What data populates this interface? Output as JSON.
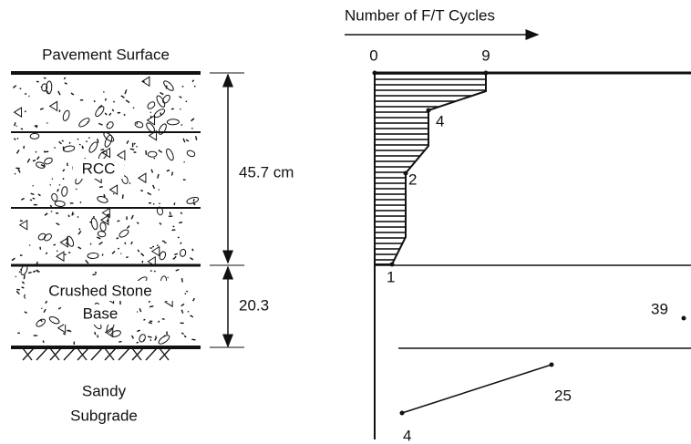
{
  "pavement": {
    "surface_label": "Pavement Surface",
    "rcc_label": "RCC",
    "base_label": [
      "Crushed Stone",
      "Base"
    ],
    "subgrade_label": [
      "Sandy",
      "Subgrade"
    ]
  },
  "dimensions": {
    "rcc_thickness": "45.7 cm",
    "base_thickness": "20.3"
  },
  "cycles_chart": {
    "title": "Number of F/T Cycles",
    "axis_labels": [
      "0",
      "9"
    ],
    "point_labels": [
      "4",
      "2",
      "1",
      "39",
      "25",
      "4"
    ]
  }
}
